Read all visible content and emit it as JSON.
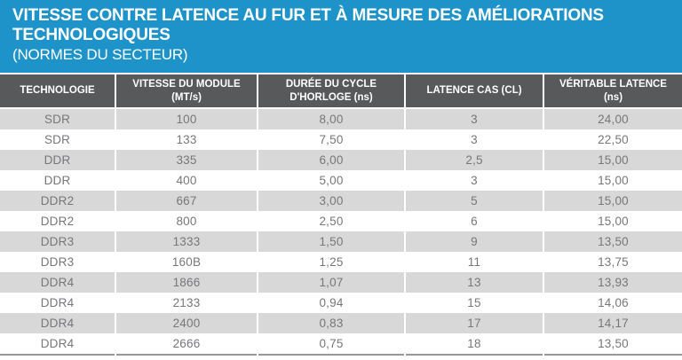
{
  "title": {
    "main": "VITESSE CONTRE LATENCE AU FUR ET À MESURE DES AMÉLIORATIONS\nTECHNOLOGIQUES",
    "subtitle": "(NORMES DU SECTEUR)"
  },
  "table": {
    "columns": [
      {
        "label": "TECHNOLOGIE"
      },
      {
        "label": "VITESSE DU MODULE\n(MT/s)"
      },
      {
        "label": "DURÉE DU CYCLE\nD'HORLOGE (ns)"
      },
      {
        "label": "LATENCE CAS (CL)"
      },
      {
        "label": "VÉRITABLE LATENCE\n(ns)"
      }
    ],
    "rows": [
      [
        "SDR",
        "100",
        "8,00",
        "3",
        "24,00"
      ],
      [
        "SDR",
        "133",
        "7,50",
        "3",
        "22,50"
      ],
      [
        "DDR",
        "335",
        "6,00",
        "2,5",
        "15,00"
      ],
      [
        "DDR",
        "400",
        "5,00",
        "3",
        "15,00"
      ],
      [
        "DDR2",
        "667",
        "3,00",
        "5",
        "15,00"
      ],
      [
        "DDR2",
        "800",
        "2,50",
        "6",
        "15,00"
      ],
      [
        "DDR3",
        "1333",
        "1,50",
        "9",
        "13,50"
      ],
      [
        "DDR3",
        "160B",
        "1,25",
        "11",
        "13,75"
      ],
      [
        "DDR4",
        "1866",
        "1,07",
        "13",
        "13,93"
      ],
      [
        "DDR4",
        "2133",
        "0,94",
        "15",
        "14,06"
      ],
      [
        "DDR4",
        "2400",
        "0,83",
        "17",
        "14,17"
      ],
      [
        "DDR4",
        "2666",
        "0,75",
        "18",
        "13,50"
      ]
    ]
  },
  "colors": {
    "banner_blue": "#1E93C9",
    "header_gray": "#58595B",
    "row_alt_gray": "#D8D8D8",
    "row_white": "#FFFFFF",
    "cell_text_gray": "#76777A",
    "bottom_border_gray": "#97989A",
    "title_text": "#FFFFFF"
  },
  "chart_data": {
    "type": "table",
    "title": "VITESSE CONTRE LATENCE AU FUR ET À MESURE DES AMÉLIORATIONS TECHNOLOGIQUES (NORMES DU SECTEUR)",
    "columns": [
      "TECHNOLOGIE",
      "VITESSE DU MODULE (MT/s)",
      "DURÉE DU CYCLE D'HORLOGE (ns)",
      "LATENCE CAS (CL)",
      "VÉRITABLE LATENCE (ns)"
    ],
    "rows": [
      [
        "SDR",
        100,
        "8,00",
        "3",
        "24,00"
      ],
      [
        "SDR",
        133,
        "7,50",
        "3",
        "22,50"
      ],
      [
        "DDR",
        335,
        "6,00",
        "2,5",
        "15,00"
      ],
      [
        "DDR",
        400,
        "5,00",
        "3",
        "15,00"
      ],
      [
        "DDR2",
        667,
        "3,00",
        "5",
        "15,00"
      ],
      [
        "DDR2",
        800,
        "2,50",
        "6",
        "15,00"
      ],
      [
        "DDR3",
        1333,
        "1,50",
        "9",
        "13,50"
      ],
      [
        "DDR3",
        "160B",
        "1,25",
        "11",
        "13,75"
      ],
      [
        "DDR4",
        1866,
        "1,07",
        "13",
        "13,93"
      ],
      [
        "DDR4",
        2133,
        "0,94",
        "15",
        "14,06"
      ],
      [
        "DDR4",
        2400,
        "0,83",
        "17",
        "14,17"
      ],
      [
        "DDR4",
        2666,
        "0,75",
        "18",
        "13,50"
      ]
    ],
    "notes": "Decimal values use French comma notation; alternating row striping gray/white"
  }
}
